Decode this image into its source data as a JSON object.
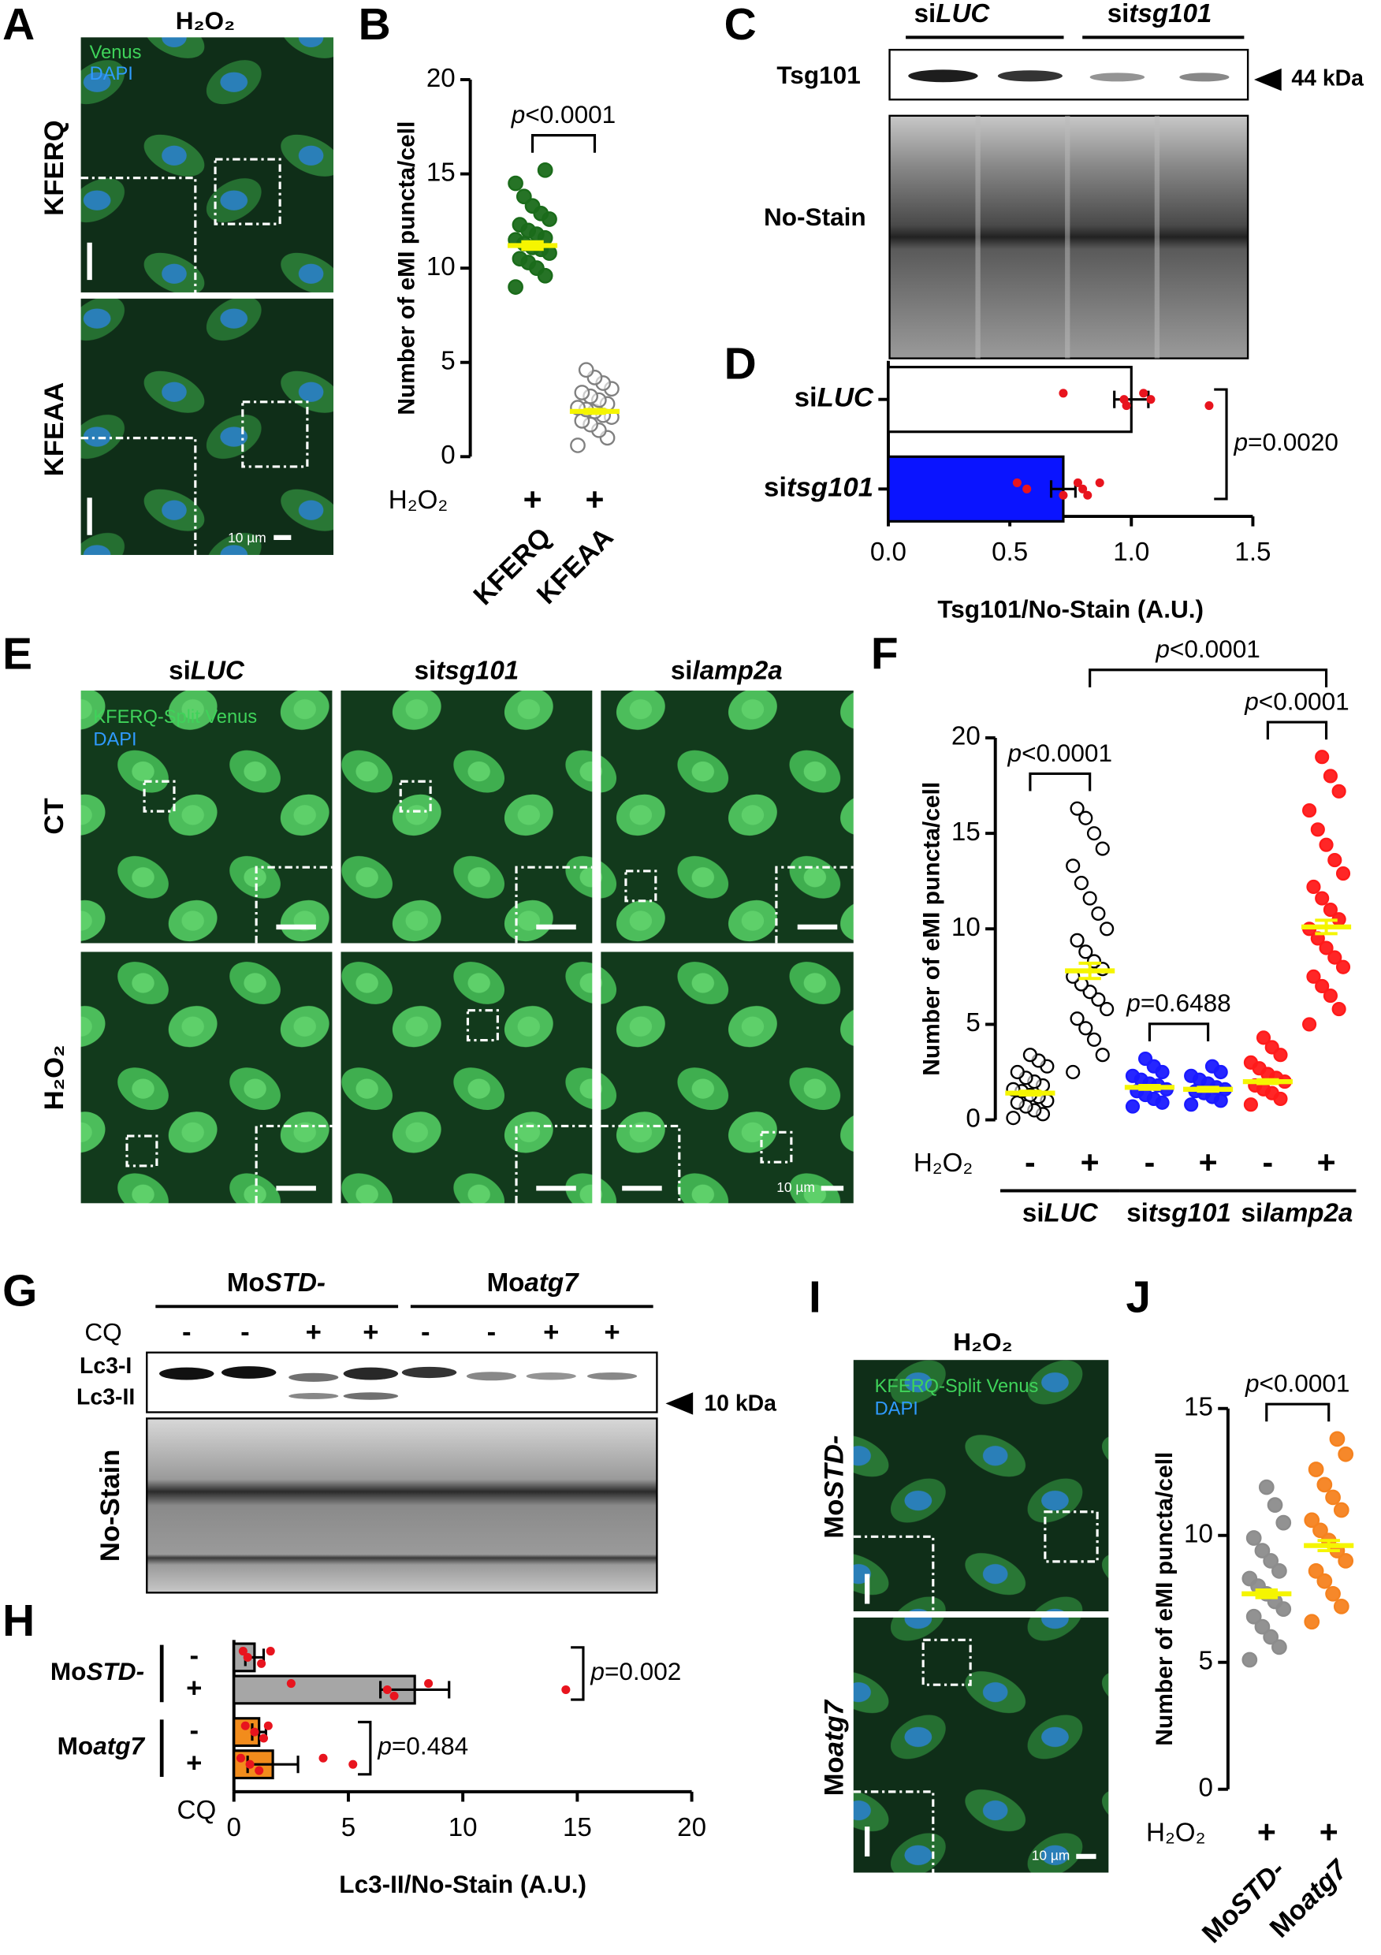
{
  "figure": {
    "panel_letters": [
      "A",
      "B",
      "C",
      "D",
      "E",
      "F",
      "G",
      "H",
      "I",
      "J"
    ],
    "A": {
      "title": "H₂O₂",
      "channels": [
        "Venus",
        "DAPI"
      ],
      "rows": [
        "KFERQ",
        "KFEAA"
      ],
      "scale_bar": "10 µm"
    },
    "C": {
      "groups": [
        "siLUC",
        "sitsg101"
      ],
      "band_label": "Tsg101",
      "marker": "44 kDa",
      "loading": "No-Stain"
    },
    "E": {
      "columns": [
        "siLUC",
        "sitsg101",
        "silamp2a"
      ],
      "rows": [
        "CT",
        "H₂O₂"
      ],
      "channels": [
        "KFERQ-Split Venus",
        "DAPI"
      ],
      "scale_bar": "10 µm"
    },
    "G": {
      "groups": [
        "MoSTD-",
        "Moatg7"
      ],
      "treatment_label": "CQ",
      "treatments": [
        "-",
        "-",
        "+",
        "+",
        "-",
        "-",
        "+",
        "+"
      ],
      "bands": [
        "Lc3-I",
        "Lc3-II"
      ],
      "marker": "10 kDa",
      "loading": "No-Stain"
    },
    "I": {
      "title": "H₂O₂",
      "channels": [
        "KFERQ-Split Venus",
        "DAPI"
      ],
      "rows": [
        "MoSTD-",
        "Moatg7"
      ],
      "scale_bar": "10 µm"
    }
  },
  "chart_data": [
    {
      "type": "dotplot",
      "ylabel": "Number of eMI puncta/cell",
      "ylim": [
        0,
        20
      ],
      "yticks": [
        0,
        5,
        10,
        15,
        20
      ],
      "row_label": "H₂O₂",
      "treatments": [
        "+",
        "+"
      ],
      "categories": [
        "KFERQ",
        "KFEAA"
      ],
      "mean_color": "#f5f500",
      "groups": [
        {
          "color": "#1a6b1a",
          "filled": true,
          "mean": 11.2,
          "sem": 0.2,
          "values": [
            9.0,
            9.6,
            10.0,
            10.3,
            10.5,
            10.8,
            11.0,
            11.1,
            11.3,
            11.5,
            11.6,
            11.8,
            12.0,
            12.3,
            12.6,
            12.9,
            13.3,
            13.8,
            14.5,
            15.2
          ]
        },
        {
          "color": "#808080",
          "filled": false,
          "mean": 2.4,
          "sem": 0.1,
          "values": [
            0.6,
            1.0,
            1.4,
            1.7,
            1.9,
            2.1,
            2.2,
            2.4,
            2.5,
            2.6,
            2.8,
            3.0,
            3.2,
            3.4,
            3.6,
            3.9,
            4.2,
            4.6
          ]
        }
      ],
      "annotations": [
        {
          "text": "p<0.0001",
          "span": [
            0,
            1
          ]
        }
      ]
    },
    {
      "type": "barh",
      "xlabel": "Tsg101/No-Stain (A.U.)",
      "xlim": [
        0,
        1.5
      ],
      "xticks": [
        {
          "value": 0,
          "label": "0.0"
        },
        {
          "value": 0.5,
          "label": "0.5"
        },
        {
          "value": 1,
          "label": "1.0"
        },
        {
          "value": 1.5,
          "label": "1.5"
        }
      ],
      "categories": [
        "siLUC",
        "sitsg101"
      ],
      "values": [
        1.0,
        0.72
      ],
      "errors": [
        0.07,
        0.05
      ],
      "colors": [
        "#ffffff",
        "#0a14ff"
      ],
      "point_color": "#e8141e",
      "points": [
        [
          0.72,
          0.97,
          0.98,
          1.05,
          1.08,
          1.32
        ],
        [
          0.53,
          0.57,
          0.72,
          0.78,
          0.8,
          0.82,
          0.87
        ]
      ],
      "annotations": [
        {
          "text": "p=0.0020",
          "span": [
            0,
            1
          ]
        }
      ]
    },
    {
      "type": "dotplot",
      "ylabel": "Number of eMI puncta/cell",
      "ylim": [
        0,
        20
      ],
      "yticks": [
        0,
        5,
        10,
        15,
        20
      ],
      "row_label": "H₂O₂",
      "treatments": [
        "-",
        "+",
        "-",
        "+",
        "-",
        "+"
      ],
      "group_labels": [
        "siLUC",
        "sitsg101",
        "silamp2a"
      ],
      "mean_color": "#f5f500",
      "groups": [
        {
          "color": "#000000",
          "filled": false,
          "mean": 1.4,
          "sem": 0.1,
          "values": [
            0.1,
            0.3,
            0.5,
            0.7,
            0.9,
            1.0,
            1.2,
            1.3,
            1.5,
            1.6,
            1.8,
            2.0,
            2.2,
            2.5,
            2.8,
            3.1,
            3.4
          ]
        },
        {
          "color": "#000000",
          "filled": false,
          "mean": 7.8,
          "sem": 0.4,
          "values": [
            2.5,
            3.4,
            4.2,
            4.8,
            5.3,
            5.8,
            6.3,
            6.7,
            7.1,
            7.5,
            7.9,
            8.3,
            8.8,
            9.4,
            10.0,
            10.8,
            11.6,
            12.4,
            13.3,
            14.2,
            15.0,
            15.8,
            16.3
          ]
        },
        {
          "color": "#1a1aff",
          "filled": true,
          "mean": 1.7,
          "sem": 0.1,
          "values": [
            0.7,
            0.9,
            1.1,
            1.3,
            1.5,
            1.6,
            1.8,
            1.9,
            2.1,
            2.3,
            2.5,
            2.8,
            3.2
          ]
        },
        {
          "color": "#1a1aff",
          "filled": true,
          "mean": 1.6,
          "sem": 0.1,
          "values": [
            0.8,
            1.0,
            1.2,
            1.4,
            1.5,
            1.6,
            1.7,
            1.9,
            2.1,
            2.3,
            2.5,
            2.8
          ]
        },
        {
          "color": "#ff1a1a",
          "filled": true,
          "mean": 2.0,
          "sem": 0.1,
          "values": [
            0.8,
            1.1,
            1.4,
            1.6,
            1.8,
            2.0,
            2.2,
            2.4,
            2.7,
            3.0,
            3.4,
            3.8,
            4.3
          ]
        },
        {
          "color": "#ff1a1a",
          "filled": true,
          "mean": 10.1,
          "sem": 0.35,
          "values": [
            5.0,
            5.8,
            6.5,
            7.0,
            7.5,
            8.0,
            8.5,
            9.0,
            9.5,
            10.0,
            10.5,
            11.0,
            11.6,
            12.2,
            12.9,
            13.6,
            14.4,
            15.2,
            16.2,
            17.2,
            18.0,
            19.0
          ]
        }
      ],
      "annotations": [
        {
          "text": "p<0.0001",
          "span": [
            0,
            1
          ]
        },
        {
          "text": "p=0.6488",
          "span": [
            2,
            3
          ]
        },
        {
          "text": "p<0.0001",
          "span": [
            4,
            5
          ]
        },
        {
          "text": "p<0.0001",
          "span": [
            1,
            5
          ]
        }
      ]
    },
    {
      "type": "barh",
      "xlabel": "Lc3-II/No-Stain (A.U.)",
      "xlim": [
        0,
        20
      ],
      "xticks": [
        0,
        5,
        10,
        15,
        20
      ],
      "categories": [
        "-",
        "+",
        "-",
        "+"
      ],
      "group_labels": [
        "MoSTD-",
        "Moatg7"
      ],
      "row_label": "CQ",
      "values": [
        0.9,
        7.9,
        1.1,
        1.7
      ],
      "errors": [
        0.4,
        1.5,
        0.3,
        1.1
      ],
      "colors": [
        "#a6a6a6",
        "#a6a6a6",
        "#f28c1c",
        "#f28c1c"
      ],
      "point_color": "#e8141e",
      "points": [
        [
          0.4,
          0.6,
          1.2,
          1.6
        ],
        [
          2.5,
          6.7,
          7.0,
          8.5,
          14.5
        ],
        [
          0.5,
          0.9,
          1.3,
          1.5
        ],
        [
          0.3,
          0.7,
          1.1,
          3.9,
          5.2
        ]
      ],
      "annotations": [
        {
          "text": "p=0.002",
          "span": [
            0,
            1
          ]
        },
        {
          "text": "p=0.484",
          "span": [
            2,
            3
          ]
        }
      ]
    },
    {
      "type": "dotplot",
      "ylabel": "Number of eMI puncta/cell",
      "ylim": [
        0,
        15
      ],
      "yticks": [
        0,
        5,
        10,
        15
      ],
      "row_label": "H₂O₂",
      "treatments": [
        "+",
        "+"
      ],
      "categories": [
        "MoSTD-",
        "Moatg7"
      ],
      "mean_color": "#f5f500",
      "groups": [
        {
          "color": "#8c8c8c",
          "filled": true,
          "mean": 7.7,
          "sem": 0.15,
          "values": [
            5.1,
            5.6,
            6.0,
            6.4,
            6.8,
            7.1,
            7.4,
            7.7,
            8.0,
            8.3,
            8.6,
            9.0,
            9.4,
            9.9,
            10.5,
            11.2,
            11.9
          ]
        },
        {
          "color": "#f5821f",
          "filled": true,
          "mean": 9.6,
          "sem": 0.2,
          "values": [
            6.6,
            7.2,
            7.7,
            8.2,
            8.6,
            9.0,
            9.4,
            9.8,
            10.2,
            10.6,
            11.0,
            11.5,
            12.0,
            12.6,
            13.2,
            13.8
          ]
        }
      ],
      "annotations": [
        {
          "text": "p<0.0001",
          "span": [
            0,
            1
          ]
        }
      ]
    }
  ]
}
